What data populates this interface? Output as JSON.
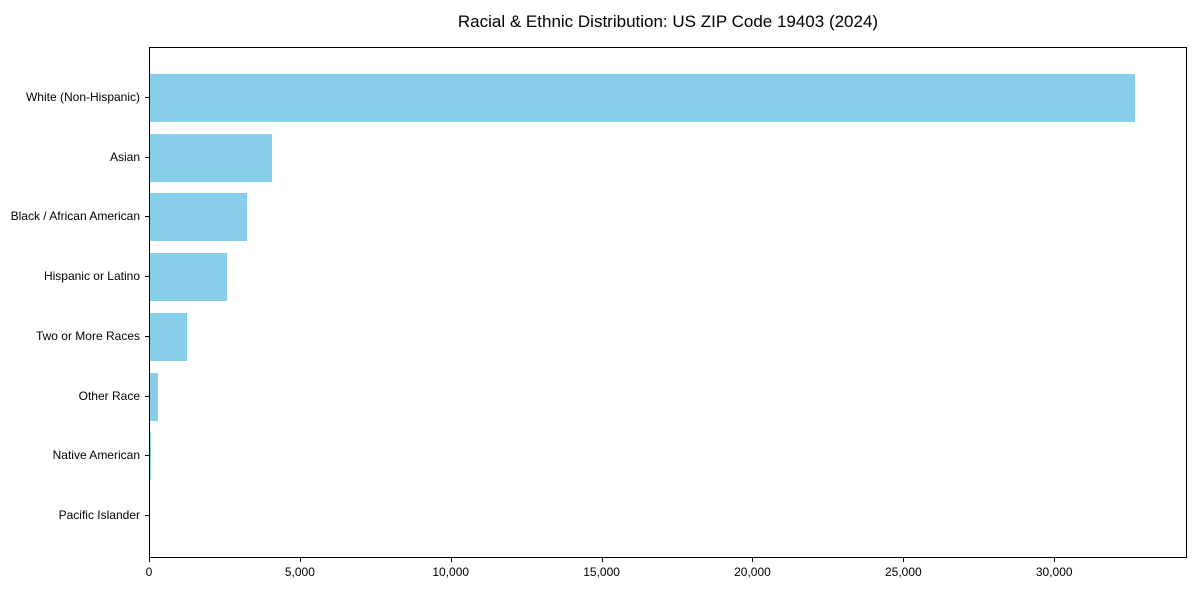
{
  "chart_data": {
    "type": "bar",
    "orientation": "horizontal",
    "title": "Racial & Ethnic Distribution: US ZIP Code 19403 (2024)",
    "categories": [
      "White (Non-Hispanic)",
      "Asian",
      "Black / African American",
      "Hispanic or Latino",
      "Two or More Races",
      "Other Race",
      "Native American",
      "Pacific Islander"
    ],
    "values": [
      32650,
      4050,
      3200,
      2550,
      1220,
      260,
      30,
      10
    ],
    "xlabel": "",
    "ylabel": "",
    "xlim": [
      0,
      34400
    ],
    "xticks": {
      "values": [
        0,
        5000,
        10000,
        15000,
        20000,
        25000,
        30000
      ],
      "labels": [
        "0",
        "5,000",
        "10,000",
        "15,000",
        "20,000",
        "25,000",
        "30,000"
      ]
    },
    "bar_color": "#87CEEB",
    "axis_color": "#000000",
    "text_color": "#000000",
    "background_color": "#ffffff",
    "grid": false,
    "legend": null
  }
}
